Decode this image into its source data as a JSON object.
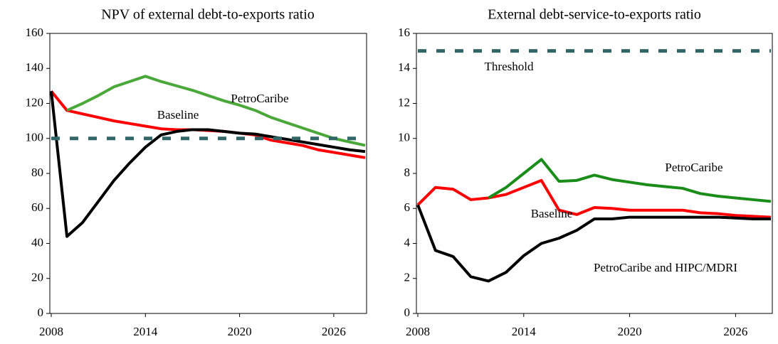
{
  "chart_data": [
    {
      "type": "line",
      "title": "NPV of external debt-to-exports ratio",
      "x": [
        2008,
        2009,
        2010,
        2011,
        2012,
        2013,
        2014,
        2015,
        2016,
        2017,
        2018,
        2019,
        2020,
        2021,
        2022,
        2023,
        2024,
        2025,
        2026,
        2027,
        2028
      ],
      "xlim": [
        2008,
        2028
      ],
      "xticks": [
        2008,
        2014,
        2020,
        2026
      ],
      "ylim": [
        0,
        160
      ],
      "yticks": [
        0,
        20,
        40,
        60,
        80,
        100,
        120,
        140,
        160
      ],
      "series": [
        {
          "name": "Baseline",
          "color": "#ff0000",
          "values": [
            127,
            116,
            114,
            112,
            110,
            108.5,
            107,
            105.5,
            105,
            105,
            104.5,
            104,
            103,
            102,
            99,
            97.5,
            96,
            93.5,
            92,
            90.5,
            89
          ]
        },
        {
          "name": "PetroCaribe",
          "color": "#4aa83a",
          "values": [
            null,
            116,
            120,
            124.5,
            129.5,
            132.5,
            135.5,
            132.5,
            130,
            127.5,
            124.5,
            121.5,
            119,
            116,
            112,
            109,
            106,
            103,
            100,
            98,
            96
          ]
        },
        {
          "color": "#000000",
          "values": [
            127,
            44,
            52,
            64,
            76,
            86,
            95,
            102,
            104,
            105,
            105,
            104,
            103,
            102.5,
            101,
            99.5,
            98,
            96.5,
            95,
            93.5,
            92.5
          ]
        },
        {
          "color": "#336666",
          "dashed": true,
          "x": [
            2008,
            2028
          ],
          "values": [
            100,
            100
          ]
        }
      ]
    },
    {
      "type": "line",
      "title": "External debt-service-to-exports ratio",
      "x": [
        2008,
        2009,
        2010,
        2011,
        2012,
        2013,
        2014,
        2015,
        2016,
        2017,
        2018,
        2019,
        2020,
        2021,
        2022,
        2023,
        2024,
        2025,
        2026,
        2027,
        2028
      ],
      "xlim": [
        2008,
        2028
      ],
      "xticks": [
        2008,
        2014,
        2020,
        2026
      ],
      "ylim": [
        0,
        16
      ],
      "yticks": [
        0,
        2,
        4,
        6,
        8,
        10,
        12,
        14,
        16
      ],
      "series": [
        {
          "name": "Baseline",
          "color": "#ff0000",
          "values": [
            6.2,
            7.2,
            7.1,
            6.5,
            6.6,
            6.8,
            7.2,
            7.6,
            5.9,
            5.65,
            6.05,
            6.0,
            5.9,
            5.9,
            5.9,
            5.9,
            5.75,
            5.7,
            5.6,
            5.55,
            5.5
          ]
        },
        {
          "name": "PetroCaribe",
          "color": "#1a8c1a",
          "values": [
            null,
            null,
            null,
            null,
            6.6,
            7.2,
            8.0,
            8.8,
            7.55,
            7.6,
            7.9,
            7.65,
            7.5,
            7.35,
            7.25,
            7.15,
            6.85,
            6.7,
            6.6,
            6.5,
            6.4
          ]
        },
        {
          "name": "PetroCaribe and HIPC/MDRI",
          "color": "#000000",
          "values": [
            6.2,
            3.6,
            3.25,
            2.1,
            1.85,
            2.35,
            3.3,
            4.0,
            4.3,
            4.75,
            5.4,
            5.4,
            5.5,
            5.5,
            5.5,
            5.5,
            5.5,
            5.5,
            5.45,
            5.4,
            5.4
          ]
        },
        {
          "name": "Threshold",
          "color": "#336666",
          "dashed": true,
          "x": [
            2008,
            2028
          ],
          "values": [
            15,
            15
          ]
        }
      ]
    }
  ]
}
